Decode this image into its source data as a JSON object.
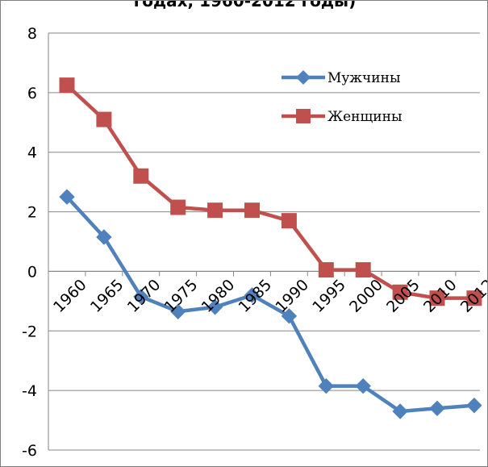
{
  "chart_data": {
    "type": "line",
    "title": "годах, 1960-2012 годы)",
    "categories": [
      "1960",
      "1965",
      "1970",
      "1975",
      "1980",
      "1985",
      "1990",
      "1995",
      "2000",
      "2005",
      "2010",
      "2012"
    ],
    "series": [
      {
        "name": "Мужчины",
        "color": "#4f81bd",
        "marker": "diamond",
        "values": [
          2.5,
          1.15,
          -0.85,
          -1.35,
          -1.2,
          -0.8,
          -1.5,
          -3.85,
          -3.85,
          -4.7,
          -4.6,
          -4.5
        ]
      },
      {
        "name": "Женщины",
        "color": "#c0504d",
        "marker": "square",
        "values": [
          6.25,
          5.1,
          3.2,
          2.15,
          2.05,
          2.05,
          1.7,
          0.05,
          0.05,
          -0.7,
          -0.9,
          -0.9
        ]
      }
    ],
    "ylim": [
      -6,
      8
    ],
    "yticks": [
      "8",
      "6",
      "4",
      "2",
      "0",
      "-2",
      "-4",
      "-6"
    ],
    "grid": true,
    "legend": "top-right"
  }
}
